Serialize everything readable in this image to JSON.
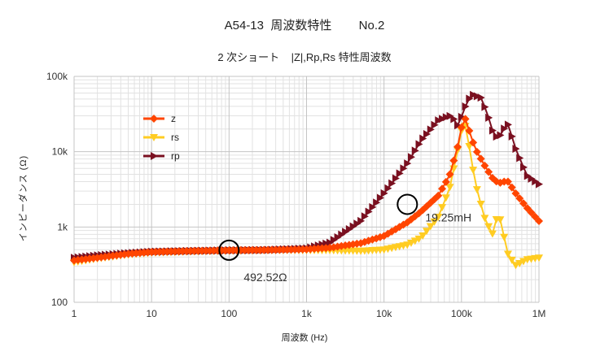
{
  "chart_data": {
    "type": "line",
    "title": "A54-13  周波数特性        No.2",
    "subtitle": "2 次ショート    |Z|,Rp,Rs 特性周波数",
    "xlabel": "周波数 (Hz)",
    "ylabel": "インピーダンス (Ω)",
    "x_scale": "log",
    "y_scale": "log",
    "xlim": [
      1,
      1000000
    ],
    "ylim": [
      100,
      100000
    ],
    "x_ticks": [
      "1",
      "10",
      "100",
      "1k",
      "10k",
      "100k",
      "1M"
    ],
    "y_ticks": [
      "100",
      "1k",
      "10k",
      "100k"
    ],
    "grid": true,
    "legend_position": "upper-left",
    "series": [
      {
        "name": "z",
        "color": "#ff4500",
        "marker": "diamond",
        "points": [
          [
            1,
            360
          ],
          [
            2,
            390
          ],
          [
            5,
            440
          ],
          [
            10,
            465
          ],
          [
            30,
            480
          ],
          [
            100,
            490
          ],
          [
            300,
            495
          ],
          [
            1000,
            505
          ],
          [
            2000,
            530
          ],
          [
            5000,
            610
          ],
          [
            10000,
            760
          ],
          [
            20000,
            1150
          ],
          [
            30000,
            1600
          ],
          [
            50000,
            2600
          ],
          [
            70000,
            4800
          ],
          [
            90000,
            12000
          ],
          [
            100000,
            21000
          ],
          [
            110000,
            29000
          ],
          [
            120000,
            22000
          ],
          [
            150000,
            11000
          ],
          [
            200000,
            6500
          ],
          [
            250000,
            4500
          ],
          [
            300000,
            3800
          ],
          [
            350000,
            4000
          ],
          [
            400000,
            4000
          ],
          [
            500000,
            2800
          ],
          [
            700000,
            1800
          ],
          [
            1000000,
            1200
          ]
        ]
      },
      {
        "name": "rs",
        "color": "#ffcc22",
        "marker": "triangle-down",
        "points": [
          [
            1,
            340
          ],
          [
            2,
            380
          ],
          [
            5,
            430
          ],
          [
            10,
            455
          ],
          [
            30,
            470
          ],
          [
            100,
            485
          ],
          [
            300,
            490
          ],
          [
            1000,
            490
          ],
          [
            2000,
            490
          ],
          [
            5000,
            480
          ],
          [
            10000,
            500
          ],
          [
            20000,
            580
          ],
          [
            30000,
            720
          ],
          [
            50000,
            1350
          ],
          [
            70000,
            3200
          ],
          [
            90000,
            11000
          ],
          [
            100000,
            19000
          ],
          [
            110000,
            24000
          ],
          [
            120000,
            16000
          ],
          [
            140000,
            6000
          ],
          [
            160000,
            3000
          ],
          [
            200000,
            1300
          ],
          [
            250000,
            800
          ],
          [
            300000,
            1600
          ],
          [
            350000,
            780
          ],
          [
            400000,
            430
          ],
          [
            500000,
            310
          ],
          [
            700000,
            370
          ],
          [
            1000000,
            390
          ]
        ]
      },
      {
        "name": "rp",
        "color": "#7a1020",
        "marker": "triangle-right",
        "points": [
          [
            1,
            390
          ],
          [
            2,
            420
          ],
          [
            5,
            450
          ],
          [
            10,
            470
          ],
          [
            30,
            480
          ],
          [
            100,
            490
          ],
          [
            300,
            495
          ],
          [
            1000,
            520
          ],
          [
            2000,
            620
          ],
          [
            5000,
            1200
          ],
          [
            10000,
            2800
          ],
          [
            20000,
            7000
          ],
          [
            30000,
            14000
          ],
          [
            50000,
            26000
          ],
          [
            70000,
            30000
          ],
          [
            80000,
            27000
          ],
          [
            90000,
            22000
          ],
          [
            100000,
            29000
          ],
          [
            120000,
            48000
          ],
          [
            140000,
            57000
          ],
          [
            180000,
            52000
          ],
          [
            220000,
            30000
          ],
          [
            260000,
            17000
          ],
          [
            300000,
            15000
          ],
          [
            350000,
            20000
          ],
          [
            400000,
            23000
          ],
          [
            500000,
            11000
          ],
          [
            700000,
            4800
          ],
          [
            1000000,
            3700
          ]
        ]
      }
    ],
    "annotations": [
      {
        "text": "492.52Ω",
        "x": 100,
        "y": 492
      },
      {
        "text": "19.25mH",
        "x": 20000,
        "y": 2000
      }
    ]
  }
}
